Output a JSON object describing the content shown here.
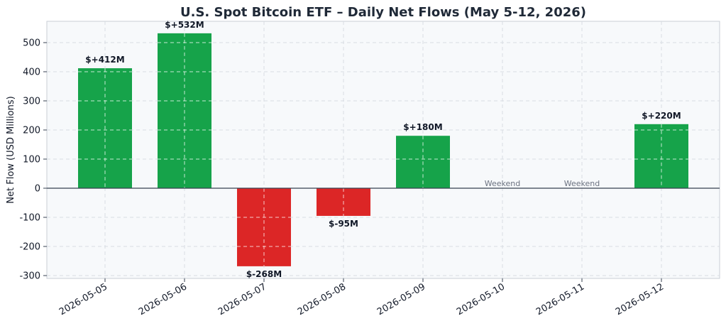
{
  "chart_data": {
    "type": "bar",
    "title": "U.S. Spot Bitcoin ETF – Daily Net Flows (May 5-12, 2026)",
    "xlabel": "",
    "ylabel": "Net Flow (USD Millions)",
    "ylim": [
      -305,
      570
    ],
    "yticks": [
      -300,
      -200,
      -100,
      0,
      100,
      200,
      300,
      400,
      500
    ],
    "categories": [
      "2026-05-05",
      "2026-05-06",
      "2026-05-07",
      "2026-05-08",
      "2026-05-09",
      "2026-05-10",
      "2026-05-11",
      "2026-05-12"
    ],
    "values": [
      412,
      532,
      -268,
      -95,
      180,
      null,
      null,
      220
    ],
    "data_labels": [
      "$+412M",
      "$+532M",
      "$-268M",
      "$-95M",
      "$+180M",
      "Weekend",
      "Weekend",
      "$+220M"
    ],
    "colors": {
      "positive": "#16a34a",
      "negative": "#dc2626",
      "background": "#f7f9fb",
      "zero_line": "#374151",
      "grid": "#d8dde3",
      "weekend_text": "#6b7280"
    },
    "grid": true
  }
}
